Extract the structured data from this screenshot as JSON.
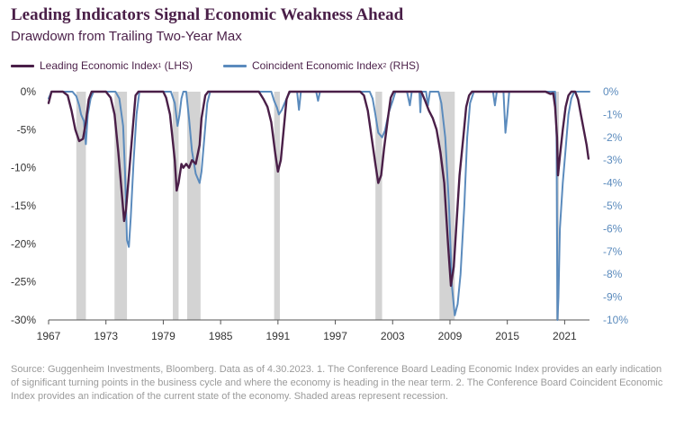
{
  "title": "Leading Indicators Signal Economic Weakness Ahead",
  "subtitle": "Drawdown from Trailing Two-Year Max",
  "source": "Source: Guggenheim Investments, Bloomberg. Data as of 4.30.2023. 1. The Conference Board Leading Economic Index provides an early indication of significant turning points in the business cycle and where the economy is heading in the near term. 2. The Conference Board Coincident Economic Index provides an indication of the current state of the economy. Shaded areas represent recession.",
  "colors": {
    "lei": "#4a1f48",
    "cei": "#5b8bbd",
    "recession": "#d3d3d3",
    "title": "#4a1f48"
  },
  "chart_data": {
    "type": "line",
    "legend_position": "top-left",
    "grid": false,
    "x_range": [
      1967,
      2023.6
    ],
    "x_ticks": [
      "1967",
      "1973",
      "1979",
      "1985",
      "1991",
      "1997",
      "2003",
      "2009",
      "2015",
      "2021"
    ],
    "y_left": {
      "range": [
        -30,
        0
      ],
      "ticks": [
        "0%",
        "-5%",
        "-10%",
        "-15%",
        "-20%",
        "-25%",
        "-30%"
      ]
    },
    "y_right": {
      "range": [
        -10,
        0
      ],
      "ticks": [
        "0%",
        "-1%",
        "-2%",
        "-3%",
        "-4%",
        "-5%",
        "-6%",
        "-7%",
        "-8%",
        "-9%",
        "-10%"
      ]
    },
    "recessions": [
      [
        1969.9,
        1970.9
      ],
      [
        1973.9,
        1975.2
      ],
      [
        1980.0,
        1980.6
      ],
      [
        1981.5,
        1982.9
      ],
      [
        1990.6,
        1991.2
      ],
      [
        2001.2,
        2001.9
      ],
      [
        2007.9,
        2009.5
      ],
      [
        2020.1,
        2020.4
      ]
    ],
    "series": [
      {
        "name": "Leading Economic Index",
        "name_sup": "1",
        "axis_label": "(LHS)",
        "axis": "left",
        "points": [
          [
            1967.0,
            -1.5
          ],
          [
            1967.3,
            0
          ],
          [
            1968.5,
            0
          ],
          [
            1969.0,
            -0.5
          ],
          [
            1969.4,
            -2.5
          ],
          [
            1969.8,
            -5.0
          ],
          [
            1970.2,
            -6.5
          ],
          [
            1970.6,
            -6.2
          ],
          [
            1970.9,
            -4.0
          ],
          [
            1971.2,
            -1.0
          ],
          [
            1971.5,
            0
          ],
          [
            1973.0,
            0
          ],
          [
            1973.5,
            -0.8
          ],
          [
            1973.9,
            -3.0
          ],
          [
            1974.3,
            -8.0
          ],
          [
            1974.7,
            -14.0
          ],
          [
            1974.9,
            -17.0
          ],
          [
            1975.1,
            -15.5
          ],
          [
            1975.4,
            -11.0
          ],
          [
            1975.8,
            -5.0
          ],
          [
            1976.1,
            -0.5
          ],
          [
            1976.4,
            0
          ],
          [
            1979.0,
            0
          ],
          [
            1979.3,
            -0.8
          ],
          [
            1979.7,
            -3.0
          ],
          [
            1980.2,
            -9.0
          ],
          [
            1980.4,
            -13.0
          ],
          [
            1980.6,
            -12.0
          ],
          [
            1980.9,
            -9.5
          ],
          [
            1981.1,
            -10.0
          ],
          [
            1981.4,
            -9.5
          ],
          [
            1981.7,
            -10.0
          ],
          [
            1982.0,
            -9.0
          ],
          [
            1982.4,
            -9.5
          ],
          [
            1982.8,
            -7.0
          ],
          [
            1983.0,
            -3.5
          ],
          [
            1983.4,
            -0.5
          ],
          [
            1983.7,
            0
          ],
          [
            1989.0,
            0
          ],
          [
            1989.5,
            -1.0
          ],
          [
            1989.9,
            -2.0
          ],
          [
            1990.3,
            -4.0
          ],
          [
            1990.7,
            -8.0
          ],
          [
            1991.0,
            -10.5
          ],
          [
            1991.3,
            -9.0
          ],
          [
            1991.6,
            -5.0
          ],
          [
            1991.9,
            -1.0
          ],
          [
            1992.2,
            0
          ],
          [
            1999.6,
            0
          ],
          [
            2000.0,
            -0.5
          ],
          [
            2000.4,
            -2.5
          ],
          [
            2000.8,
            -6.0
          ],
          [
            2001.2,
            -9.5
          ],
          [
            2001.5,
            -12.0
          ],
          [
            2001.8,
            -11.0
          ],
          [
            2002.1,
            -7.5
          ],
          [
            2002.5,
            -3.5
          ],
          [
            2002.8,
            -0.8
          ],
          [
            2003.1,
            0
          ],
          [
            2006.0,
            0
          ],
          [
            2006.4,
            -1.2
          ],
          [
            2006.8,
            -2.5
          ],
          [
            2007.2,
            -3.5
          ],
          [
            2007.6,
            -5.0
          ],
          [
            2008.0,
            -8.0
          ],
          [
            2008.4,
            -12.0
          ],
          [
            2008.8,
            -20.0
          ],
          [
            2009.1,
            -25.5
          ],
          [
            2009.4,
            -23.0
          ],
          [
            2009.7,
            -17.0
          ],
          [
            2010.0,
            -11.0
          ],
          [
            2010.4,
            -6.0
          ],
          [
            2010.7,
            -2.0
          ],
          [
            2011.0,
            -0.5
          ],
          [
            2011.3,
            0
          ],
          [
            2019.0,
            0
          ],
          [
            2019.5,
            -0.3
          ],
          [
            2019.8,
            -0.2
          ],
          [
            2020.0,
            -2.0
          ],
          [
            2020.2,
            -6.0
          ],
          [
            2020.3,
            -11.0
          ],
          [
            2020.5,
            -8.5
          ],
          [
            2020.8,
            -5.0
          ],
          [
            2021.1,
            -2.0
          ],
          [
            2021.4,
            -0.5
          ],
          [
            2021.7,
            0
          ],
          [
            2022.1,
            0
          ],
          [
            2022.4,
            -1.0
          ],
          [
            2022.7,
            -3.0
          ],
          [
            2023.0,
            -5.0
          ],
          [
            2023.3,
            -7.0
          ],
          [
            2023.5,
            -8.8
          ]
        ]
      },
      {
        "name": "Coincident Economic Index",
        "name_sup": "2",
        "axis_label": "(RHS)",
        "axis": "right",
        "points": [
          [
            1967.0,
            -0.3
          ],
          [
            1967.3,
            0
          ],
          [
            1969.5,
            0
          ],
          [
            1969.9,
            -0.2
          ],
          [
            1970.2,
            -0.6
          ],
          [
            1970.4,
            -1.0
          ],
          [
            1970.7,
            -1.3
          ],
          [
            1970.9,
            -2.3
          ],
          [
            1971.1,
            -1.0
          ],
          [
            1971.4,
            -0.3
          ],
          [
            1971.7,
            0
          ],
          [
            1974.0,
            0
          ],
          [
            1974.4,
            -0.3
          ],
          [
            1974.8,
            -1.5
          ],
          [
            1975.0,
            -3.5
          ],
          [
            1975.2,
            -6.5
          ],
          [
            1975.4,
            -6.8
          ],
          [
            1975.6,
            -5.5
          ],
          [
            1975.9,
            -3.0
          ],
          [
            1976.2,
            -1.0
          ],
          [
            1976.5,
            0
          ],
          [
            1979.8,
            0
          ],
          [
            1980.2,
            -0.5
          ],
          [
            1980.5,
            -1.5
          ],
          [
            1980.7,
            -1.0
          ],
          [
            1980.9,
            -0.3
          ],
          [
            1981.1,
            0
          ],
          [
            1981.4,
            0
          ],
          [
            1981.7,
            -1.2
          ],
          [
            1982.0,
            -2.6
          ],
          [
            1982.4,
            -3.6
          ],
          [
            1982.8,
            -4.0
          ],
          [
            1983.0,
            -3.5
          ],
          [
            1983.3,
            -2.0
          ],
          [
            1983.6,
            -0.5
          ],
          [
            1983.9,
            0
          ],
          [
            1990.3,
            0
          ],
          [
            1990.6,
            -0.4
          ],
          [
            1990.9,
            -0.7
          ],
          [
            1991.1,
            -1.0
          ],
          [
            1991.4,
            -0.8
          ],
          [
            1991.7,
            -0.5
          ],
          [
            1992.0,
            -0.2
          ],
          [
            1992.3,
            0
          ],
          [
            1993.0,
            0
          ],
          [
            1993.2,
            -0.8
          ],
          [
            1993.4,
            0
          ],
          [
            1995.0,
            0
          ],
          [
            1995.2,
            -0.4
          ],
          [
            1995.4,
            0
          ],
          [
            2000.6,
            0
          ],
          [
            2000.9,
            -0.3
          ],
          [
            2001.2,
            -1.0
          ],
          [
            2001.5,
            -1.8
          ],
          [
            2001.9,
            -2.0
          ],
          [
            2002.2,
            -1.7
          ],
          [
            2002.6,
            -0.9
          ],
          [
            2003.0,
            -0.4
          ],
          [
            2003.3,
            0
          ],
          [
            2004.5,
            0
          ],
          [
            2004.8,
            -0.6
          ],
          [
            2005.0,
            0
          ],
          [
            2005.8,
            0
          ],
          [
            2005.9,
            -0.9
          ],
          [
            2006.0,
            0
          ],
          [
            2006.5,
            0
          ],
          [
            2006.7,
            -0.6
          ],
          [
            2006.9,
            0
          ],
          [
            2007.8,
            0
          ],
          [
            2008.1,
            -0.5
          ],
          [
            2008.5,
            -2.0
          ],
          [
            2008.9,
            -5.0
          ],
          [
            2009.2,
            -8.5
          ],
          [
            2009.5,
            -9.8
          ],
          [
            2009.8,
            -9.3
          ],
          [
            2010.1,
            -8.0
          ],
          [
            2010.5,
            -5.0
          ],
          [
            2010.8,
            -2.0
          ],
          [
            2011.1,
            -0.5
          ],
          [
            2011.5,
            0
          ],
          [
            2013.5,
            0
          ],
          [
            2013.7,
            -0.6
          ],
          [
            2013.9,
            0
          ],
          [
            2014.6,
            0
          ],
          [
            2014.8,
            -1.8
          ],
          [
            2015.0,
            -1.0
          ],
          [
            2015.2,
            0
          ],
          [
            2020.0,
            0
          ],
          [
            2020.15,
            -2.0
          ],
          [
            2020.25,
            -10.0
          ],
          [
            2020.35,
            -9.0
          ],
          [
            2020.5,
            -6.0
          ],
          [
            2020.8,
            -4.0
          ],
          [
            2021.1,
            -2.5
          ],
          [
            2021.4,
            -1.0
          ],
          [
            2021.7,
            -0.3
          ],
          [
            2022.0,
            0
          ],
          [
            2023.6,
            0
          ]
        ]
      }
    ]
  }
}
